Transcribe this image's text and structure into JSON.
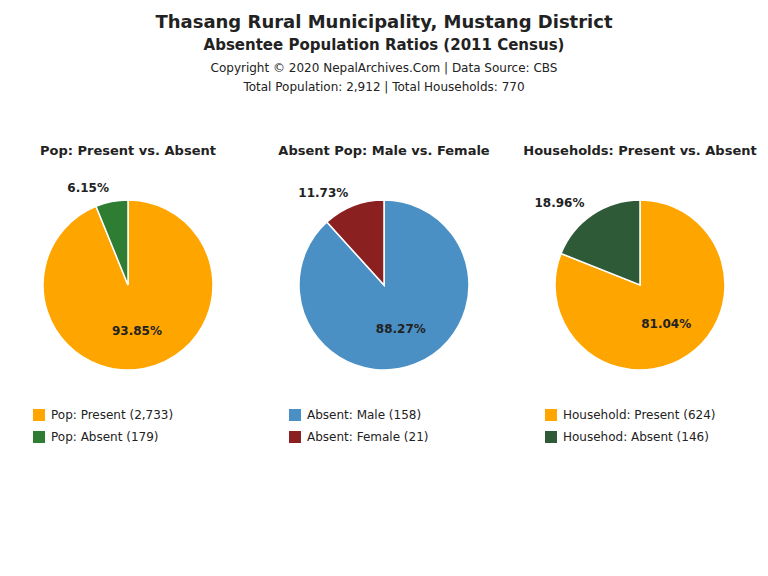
{
  "title": "Thasang Rural Municipality, Mustang District",
  "subtitle": "Absentee Population Ratios (2011 Census)",
  "annotations": [
    "Copyright © 2020 NepalArchives.Com | Data Source: CBS",
    "Total Population: 2,912 | Total Households: 770"
  ],
  "chart_data": [
    {
      "type": "pie",
      "title": "Pop: Present vs. Absent",
      "categories": [
        "Pop: Present (2,733)",
        "Pop: Absent (179)"
      ],
      "values": [
        93.85,
        6.15
      ],
      "value_labels": [
        "93.85%",
        "6.15%"
      ],
      "colors": [
        "#FFA500",
        "#2E7D32"
      ],
      "data_labels": true,
      "legend": "bottom"
    },
    {
      "type": "pie",
      "title": "Absent Pop: Male vs. Female",
      "categories": [
        "Absent: Male (158)",
        "Absent: Female (21)"
      ],
      "values": [
        88.27,
        11.73
      ],
      "value_labels": [
        "88.27%",
        "11.73%"
      ],
      "colors": [
        "#4A90C4",
        "#8B2020"
      ],
      "data_labels": true,
      "legend": "bottom"
    },
    {
      "type": "pie",
      "title": "Households: Present vs. Absent",
      "categories": [
        "Household: Present (624)",
        "Househod: Absent (146)"
      ],
      "values": [
        81.04,
        18.96
      ],
      "value_labels": [
        "81.04%",
        "18.96%"
      ],
      "colors": [
        "#FFA500",
        "#2E5A38"
      ],
      "data_labels": true,
      "legend": "bottom"
    }
  ]
}
